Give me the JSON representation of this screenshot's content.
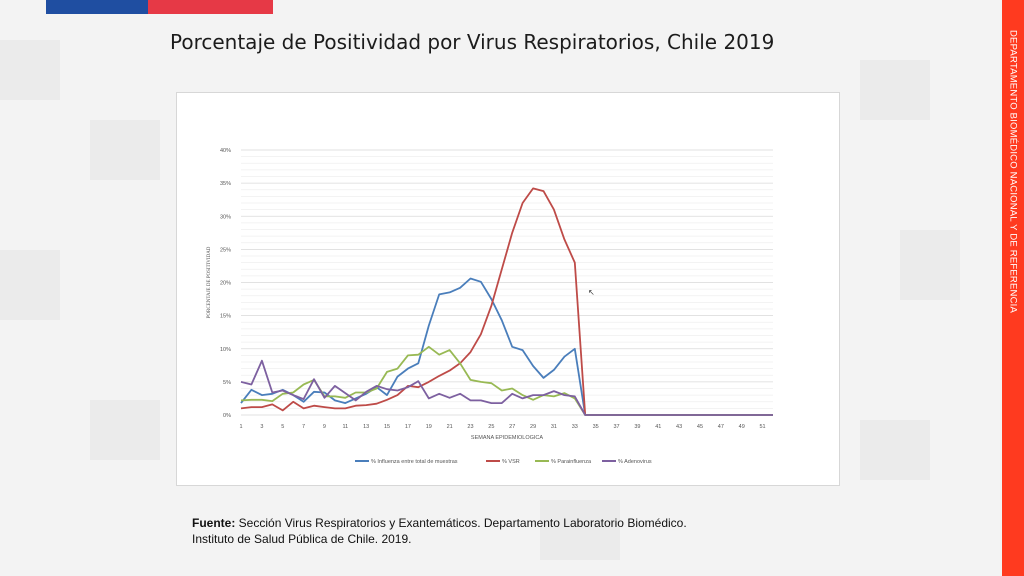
{
  "slide": {
    "title": "Porcentaje de Positividad por Virus Respiratorios, Chile 2019",
    "side_text": "DEPARTAMENTO BIOMÉDICO NACIONAL Y DE REFERENCIA",
    "source_bold": "Fuente:",
    "source_line1": " Sección Virus Respiratorios y Exantemáticos. Departamento Laboratorio Biomédico.",
    "source_line2": "Instituto de Salud Pública de Chile. 2019.",
    "colors": {
      "flag_blue": "#1f4ea1",
      "flag_red": "#e63946",
      "side_bar": "#ff3a1f"
    }
  },
  "chart_data": {
    "type": "line",
    "xlabel": "SEMANA EPIDEMIOLOGICA",
    "ylabel": "PORCENTAJE DE POSITIVIDAD",
    "ylim": [
      0,
      40
    ],
    "yticks": [
      "0%",
      "5%",
      "10%",
      "15%",
      "20%",
      "25%",
      "30%",
      "35%",
      "40%"
    ],
    "xticks": [
      "1",
      "3",
      "5",
      "7",
      "9",
      "11",
      "13",
      "15",
      "17",
      "19",
      "21",
      "23",
      "25",
      "27",
      "29",
      "31",
      "33",
      "35",
      "37",
      "39",
      "41",
      "43",
      "45",
      "47",
      "49",
      "51"
    ],
    "x": [
      1,
      2,
      3,
      4,
      5,
      6,
      7,
      8,
      9,
      10,
      11,
      12,
      13,
      14,
      15,
      16,
      17,
      18,
      19,
      20,
      21,
      22,
      23,
      24,
      25,
      26,
      27,
      28,
      29,
      30,
      31,
      32,
      33,
      34,
      35,
      36,
      37,
      38,
      39,
      40,
      41,
      42,
      43,
      44,
      45,
      46,
      47,
      48,
      49,
      50,
      51,
      52
    ],
    "grid": true,
    "legend_position": "bottom",
    "series": [
      {
        "name": "% Influenza entre total de muestras",
        "color": "#4a7ebb",
        "values": [
          1.8,
          3.8,
          3.0,
          3.2,
          3.8,
          3.0,
          2.0,
          3.5,
          3.4,
          2.2,
          1.8,
          2.5,
          3.2,
          4.2,
          3.0,
          5.8,
          7.0,
          7.8,
          13.5,
          18.2,
          18.5,
          19.2,
          20.6,
          20.1,
          17.5,
          14.3,
          10.3,
          9.8,
          7.4,
          5.6,
          6.8,
          8.8,
          10.0,
          0,
          0,
          0,
          0,
          0,
          0,
          0,
          0,
          0,
          0,
          0,
          0,
          0,
          0,
          0,
          0,
          0,
          0,
          0
        ]
      },
      {
        "name": "% VSR",
        "color": "#be4b48",
        "values": [
          1.0,
          1.2,
          1.2,
          1.6,
          0.7,
          2.0,
          1.0,
          1.4,
          1.2,
          1.0,
          1.0,
          1.4,
          1.5,
          1.7,
          2.3,
          3.0,
          4.4,
          4.2,
          5.0,
          5.9,
          6.7,
          7.8,
          9.5,
          12.2,
          16.5,
          22.0,
          27.5,
          32.0,
          34.2,
          33.8,
          31.0,
          26.5,
          23.0,
          0,
          0,
          0,
          0,
          0,
          0,
          0,
          0,
          0,
          0,
          0,
          0,
          0,
          0,
          0,
          0,
          0,
          0,
          0
        ]
      },
      {
        "name": "% Parainfluenza",
        "color": "#98b954",
        "values": [
          2.2,
          2.3,
          2.3,
          2.1,
          3.2,
          3.4,
          4.6,
          5.3,
          2.8,
          2.8,
          2.6,
          3.4,
          3.4,
          4.0,
          6.5,
          7.0,
          9.0,
          9.1,
          10.3,
          9.1,
          9.8,
          7.8,
          5.3,
          5.0,
          4.8,
          3.7,
          4.0,
          3.0,
          2.3,
          3.0,
          2.8,
          3.3,
          2.5,
          0,
          0,
          0,
          0,
          0,
          0,
          0,
          0,
          0,
          0,
          0,
          0,
          0,
          0,
          0,
          0,
          0,
          0,
          0
        ]
      },
      {
        "name": "% Adenovirus",
        "color": "#7d60a0",
        "values": [
          5.0,
          4.6,
          8.2,
          3.4,
          3.7,
          3.0,
          2.4,
          5.4,
          2.6,
          4.4,
          3.3,
          2.2,
          3.5,
          4.4,
          3.9,
          3.7,
          4.2,
          5.1,
          2.5,
          3.2,
          2.6,
          3.2,
          2.2,
          2.2,
          1.8,
          1.8,
          3.2,
          2.5,
          3.0,
          3.0,
          3.6,
          3.0,
          2.8,
          0,
          0,
          0,
          0,
          0,
          0,
          0,
          0,
          0,
          0,
          0,
          0,
          0,
          0,
          0,
          0,
          0,
          0,
          0
        ]
      }
    ]
  }
}
